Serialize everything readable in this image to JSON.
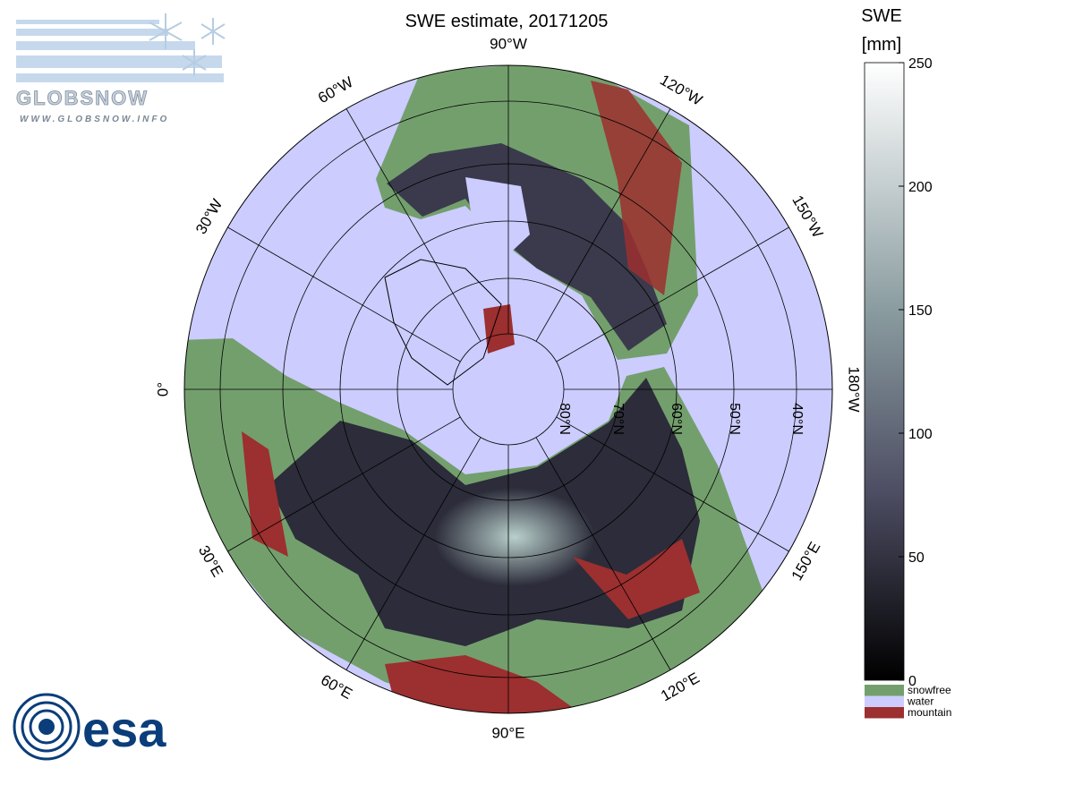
{
  "title": "SWE estimate, 20171205",
  "logo": {
    "name": "GLOBSNOW",
    "url": "WWW.GLOBSNOW.INFO"
  },
  "agency_logo": "esa",
  "map": {
    "longitude_labels": [
      "180°W",
      "150°W",
      "120°W",
      "90°W",
      "60°W",
      "30°W",
      "0°",
      "30°E",
      "60°E",
      "90°E",
      "120°E",
      "150°E"
    ],
    "latitude_labels": [
      "80°N",
      "70°N",
      "60°N",
      "50°N",
      "40°N"
    ]
  },
  "colorbar": {
    "label": "SWE",
    "unit": "[mm]",
    "lim": [
      0,
      250
    ],
    "ticks": [
      0,
      50,
      100,
      150,
      200,
      250
    ]
  },
  "legend": [
    {
      "name": "snowfree",
      "color": "#739f6d"
    },
    {
      "name": "water",
      "color": "#ccccff"
    },
    {
      "name": "mountain",
      "color": "#9c2f2f"
    }
  ]
}
